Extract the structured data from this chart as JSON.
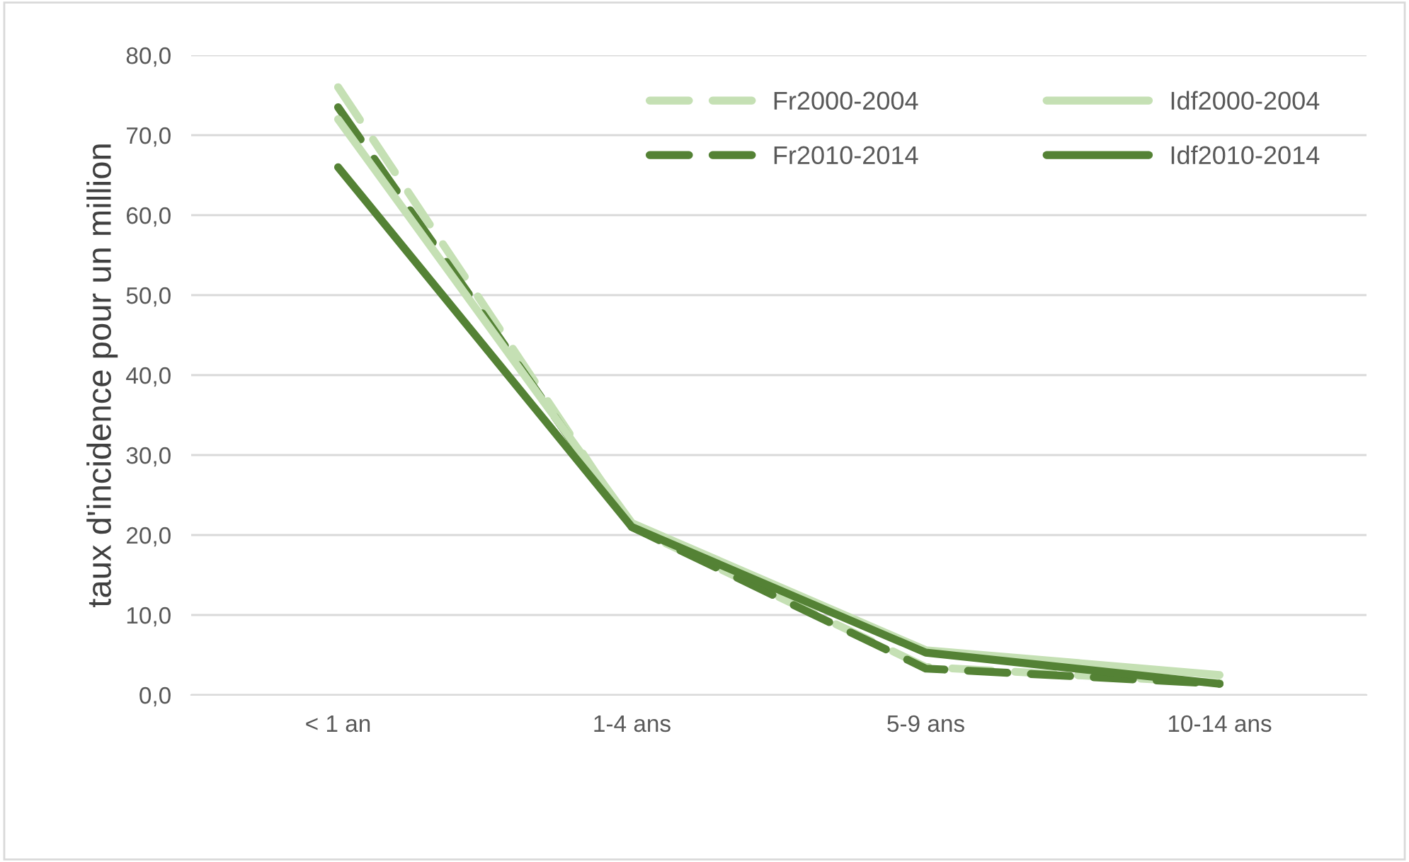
{
  "chart_data": {
    "type": "line",
    "ylabel": "taux d'incidence pour un million",
    "categories": [
      "< 1 an",
      "1-4 ans",
      "5-9 ans",
      "10-14 ans"
    ],
    "series": [
      {
        "name": "Fr2000-2004",
        "color": "#c5e0b4",
        "line_style": "dashed",
        "values": [
          76.0,
          21.0,
          3.5,
          1.5
        ]
      },
      {
        "name": "Fr2010-2014",
        "color": "#548235",
        "line_style": "dashed",
        "values": [
          73.5,
          21.0,
          3.3,
          1.4
        ]
      },
      {
        "name": "Idf2000-2004",
        "color": "#c5e0b4",
        "line_style": "solid",
        "values": [
          72.0,
          21.5,
          5.6,
          2.5
        ]
      },
      {
        "name": "Idf2010-2014",
        "color": "#548235",
        "line_style": "solid",
        "values": [
          66.0,
          21.0,
          5.3,
          1.4
        ]
      }
    ],
    "ylim": [
      0,
      80
    ],
    "yticks": [
      {
        "value": 0,
        "label": "0,0"
      },
      {
        "value": 10,
        "label": "10,0"
      },
      {
        "value": 20,
        "label": "20,0"
      },
      {
        "value": 30,
        "label": "30,0"
      },
      {
        "value": 40,
        "label": "40,0"
      },
      {
        "value": 50,
        "label": "50,0"
      },
      {
        "value": 60,
        "label": "60,0"
      },
      {
        "value": 70,
        "label": "70,0"
      },
      {
        "value": 80,
        "label": "80,0"
      }
    ],
    "grid": "y",
    "legend": "top right",
    "marker": "none"
  }
}
